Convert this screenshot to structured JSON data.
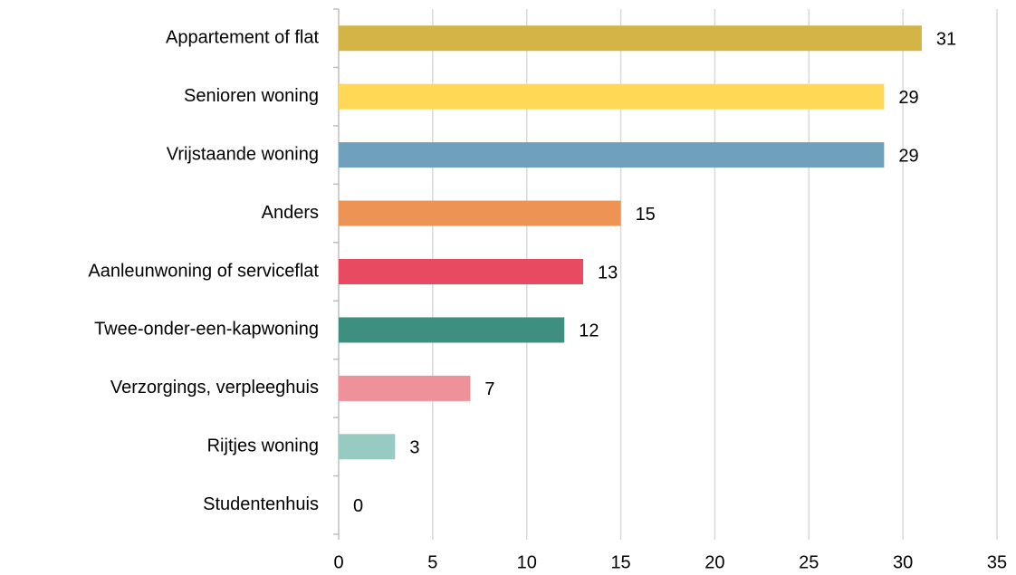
{
  "chart_data": {
    "type": "bar",
    "orientation": "horizontal",
    "categories": [
      "Appartement of flat",
      "Senioren woning",
      "Vrijstaande woning",
      "Anders",
      "Aanleunwoning of serviceflat",
      "Twee-onder-een-kapwoning",
      "Verzorgings, verpleeghuis",
      "Rijtjes woning",
      "Studentenhuis"
    ],
    "values": [
      31,
      29,
      29,
      15,
      13,
      12,
      7,
      3,
      0
    ],
    "colors": [
      "#d4b446",
      "#ffd956",
      "#6fa1bd",
      "#ed9353",
      "#e84b61",
      "#3f8f80",
      "#ee919b",
      "#97cbc1",
      "#cccccc"
    ],
    "xlim": [
      0,
      35
    ],
    "xticks": [
      0,
      5,
      10,
      15,
      20,
      25,
      30,
      35
    ],
    "grid": true
  }
}
